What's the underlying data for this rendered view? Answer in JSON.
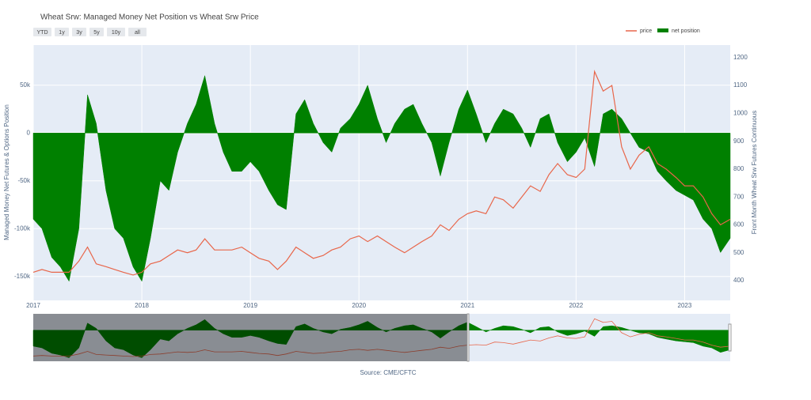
{
  "chart_data": {
    "type": "area-line",
    "title": "Wheat Srw: Managed Money Net Position vs Wheat Srw Price",
    "y_label": "Managed Money Net Futures & Options Position",
    "y2_label": "Front Month Wheat Srw Futures Continuous",
    "source": "Source: CME/CFTC",
    "range_buttons": [
      "YTD",
      "1y",
      "3y",
      "5y",
      "10y",
      "all"
    ],
    "x": [
      2017.0,
      2017.08,
      2017.17,
      2017.25,
      2017.33,
      2017.42,
      2017.5,
      2017.58,
      2017.67,
      2017.75,
      2017.83,
      2017.92,
      2018.0,
      2018.08,
      2018.17,
      2018.25,
      2018.33,
      2018.42,
      2018.5,
      2018.58,
      2018.67,
      2018.75,
      2018.83,
      2018.92,
      2019.0,
      2019.08,
      2019.17,
      2019.25,
      2019.33,
      2019.42,
      2019.5,
      2019.58,
      2019.67,
      2019.75,
      2019.83,
      2019.92,
      2020.0,
      2020.08,
      2020.17,
      2020.25,
      2020.33,
      2020.42,
      2020.5,
      2020.58,
      2020.67,
      2020.75,
      2020.83,
      2020.92,
      2021.0,
      2021.08,
      2021.17,
      2021.25,
      2021.33,
      2021.42,
      2021.5,
      2021.58,
      2021.67,
      2021.75,
      2021.83,
      2021.92,
      2022.0,
      2022.08,
      2022.17,
      2022.25,
      2022.33,
      2022.42,
      2022.5,
      2022.58,
      2022.67,
      2022.75,
      2022.83,
      2022.92,
      2023.0,
      2023.08,
      2023.17,
      2023.25,
      2023.33,
      2023.42
    ],
    "xlim": [
      2017,
      2023.42
    ],
    "xticks": [
      2017,
      2018,
      2019,
      2020,
      2021,
      2022,
      2023
    ],
    "ylim": [
      -175000,
      92000
    ],
    "yticks": [
      {
        "value": -150000,
        "label": "-150k"
      },
      {
        "value": -100000,
        "label": "-100k"
      },
      {
        "value": -50000,
        "label": "-50k"
      },
      0,
      {
        "value": 50000,
        "label": "50k"
      }
    ],
    "y2lim": [
      329,
      1245
    ],
    "y2ticks": [
      400,
      500,
      600,
      700,
      800,
      900,
      1000,
      1100,
      1200
    ],
    "grid": true,
    "series": [
      {
        "name": "price",
        "color": "#e8664a",
        "axis": "y2",
        "kind": "line",
        "values": [
          430,
          440,
          430,
          430,
          430,
          470,
          520,
          460,
          450,
          440,
          430,
          420,
          430,
          460,
          470,
          490,
          510,
          500,
          510,
          550,
          510,
          510,
          510,
          520,
          500,
          480,
          470,
          440,
          470,
          520,
          500,
          480,
          490,
          510,
          520,
          550,
          560,
          540,
          560,
          540,
          520,
          500,
          520,
          540,
          560,
          600,
          580,
          620,
          640,
          650,
          640,
          700,
          690,
          660,
          700,
          740,
          720,
          780,
          820,
          780,
          770,
          800,
          1150,
          1080,
          1100,
          880,
          800,
          850,
          880,
          820,
          800,
          770,
          740,
          740,
          700,
          640,
          600,
          620
        ]
      },
      {
        "name": "net position",
        "color": "#008000",
        "axis": "y",
        "kind": "area",
        "values": [
          -90000,
          -100000,
          -130000,
          -140000,
          -155000,
          -100000,
          40000,
          10000,
          -60000,
          -100000,
          -110000,
          -140000,
          -155000,
          -110000,
          -50000,
          -60000,
          -20000,
          10000,
          30000,
          60000,
          10000,
          -20000,
          -40000,
          -40000,
          -30000,
          -40000,
          -60000,
          -75000,
          -80000,
          20000,
          35000,
          10000,
          -10000,
          -20000,
          5000,
          15000,
          30000,
          50000,
          15000,
          -10000,
          10000,
          25000,
          30000,
          10000,
          -10000,
          -45000,
          -10000,
          25000,
          45000,
          20000,
          -10000,
          10000,
          25000,
          20000,
          5000,
          -15000,
          15000,
          20000,
          -10000,
          -30000,
          -20000,
          -5000,
          -35000,
          20000,
          25000,
          15000,
          0,
          -15000,
          -20000,
          -40000,
          -50000,
          -60000,
          -65000,
          -70000,
          -90000,
          -100000,
          -125000,
          -110000
        ]
      }
    ]
  }
}
